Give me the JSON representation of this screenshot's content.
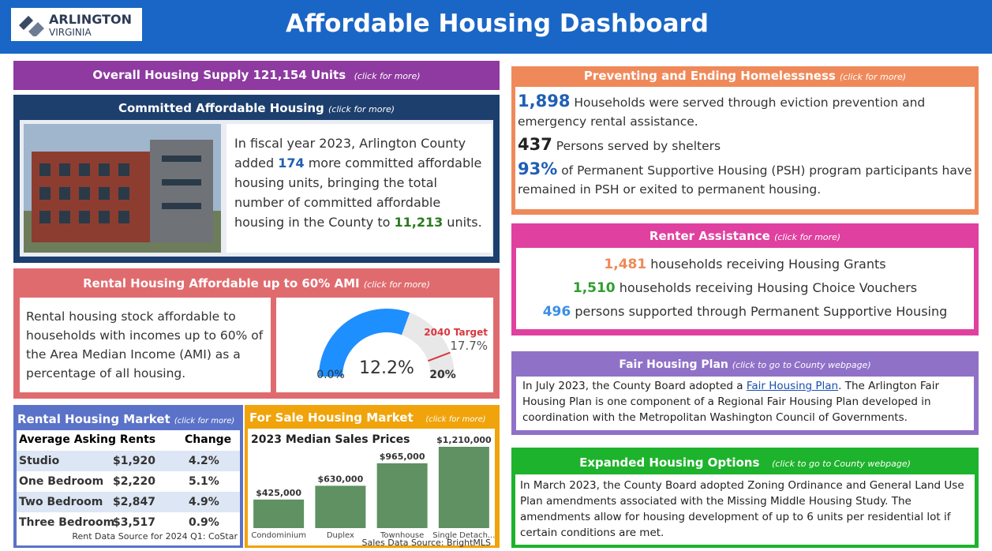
{
  "header": {
    "logo_top": "ARLINGTON",
    "logo_bottom": "VIRGINIA",
    "title": "Affordable Housing Dashboard"
  },
  "supply": {
    "title": "Overall Housing Supply 121,154 Units",
    "link": "(click for more)"
  },
  "committed": {
    "title": "Committed Affordable Housing",
    "link": "(click for more)",
    "text": [
      "In fiscal year 2023, Arlington County added ",
      "174",
      " more committed affordable housing units, bringing the total number of committed affordable housing in the County to ",
      "11,213",
      " units."
    ]
  },
  "rental60": {
    "title": "Rental Housing Affordable up to 60% AMI",
    "link": "(click for more)",
    "text": "Rental housing stock affordable to households with incomes up to 60% of the Area Median Income (AMI) as a percentage of all housing."
  },
  "rental_market": {
    "title": "Rental Housing Market",
    "link": "(click for more)",
    "header": [
      "Average Asking Rents",
      "Change"
    ],
    "rows": [
      [
        "Studio",
        "$1,920",
        "4.2%"
      ],
      [
        "One Bedroom",
        "$2,220",
        "5.1%"
      ],
      [
        "Two Bedroom",
        "$2,847",
        "4.9%"
      ],
      [
        "Three Bedroom",
        "$3,517",
        "0.9%"
      ]
    ],
    "source": "Rent Data Source for 2024 Q1: CoStar"
  },
  "sale_market": {
    "title": "For Sale Housing Market",
    "link": "(click for more)",
    "source": "Sales Data Source: BrightMLS"
  },
  "homelessness": {
    "title": "Preventing and Ending Homelessness",
    "link": "(click for more)",
    "items": [
      {
        "number": "1,898",
        "text": "Households were served through eviction prevention and emergency rental assistance.",
        "color": "#1f5fb5"
      },
      {
        "number": "437",
        "text": "Persons served by shelters",
        "color": "#222222"
      },
      {
        "number": "93%",
        "text": "of Permanent Supportive Housing (PSH) program participants have remained in PSH or exited to permanent housing.",
        "color": "#1f5fb5"
      }
    ]
  },
  "renter": {
    "title": "Renter Assistance",
    "link": "(click for more)",
    "items": [
      {
        "number": "1,481",
        "text": "households receiving Housing Grants",
        "color": "#f0895a"
      },
      {
        "number": "1,510",
        "text": "households receiving Housing Choice Vouchers",
        "color": "#2e9e2e"
      },
      {
        "number": "496",
        "text": "persons supported through Permanent Supportive Housing",
        "color": "#3a8ee6"
      }
    ]
  },
  "fair": {
    "title": "Fair Housing Plan",
    "link": "(click to go to County webpage)",
    "text_before": "In July 2023, the County Board adopted a ",
    "link_text": "Fair Housing Plan",
    "text_after": ". The Arlington Fair Housing Plan is one component of a Regional Fair Housing Plan developed in coordination with the Metropolitan Washington Council of Governments."
  },
  "expanded": {
    "title": "Expanded Housing Options",
    "link": "(click to go to County webpage)",
    "text": "In March 2023, the County Board adopted Zoning Ordinance and General Land Use Plan amendments associated with the Missing Middle Housing Study. The amendments allow for housing development of up to 6 units per residential lot if certain conditions are met."
  },
  "chart_data": [
    {
      "type": "gauge",
      "value": 12.2,
      "value_label": "12.2%",
      "ylim": [
        0,
        20
      ],
      "yticks": [
        {
          "value": 0,
          "label": "0.0%"
        },
        {
          "value": 20,
          "label": "20%"
        }
      ],
      "target": 17.7,
      "target_label": "17.7%",
      "target_title": "2040 Target",
      "color": "#1e8fff",
      "track_color": "#e8e8e8",
      "target_color": "#d9363e"
    },
    {
      "type": "bar",
      "title": "2023 Median Sales Prices",
      "categories": [
        "Condominium",
        "Duplex",
        "Townhouse",
        "Single Detach..."
      ],
      "values": [
        425000,
        630000,
        965000,
        1210000
      ],
      "value_labels": [
        "$425,000",
        "$630,000",
        "$965,000",
        "$1,210,000"
      ],
      "color": "#5f9162"
    }
  ]
}
